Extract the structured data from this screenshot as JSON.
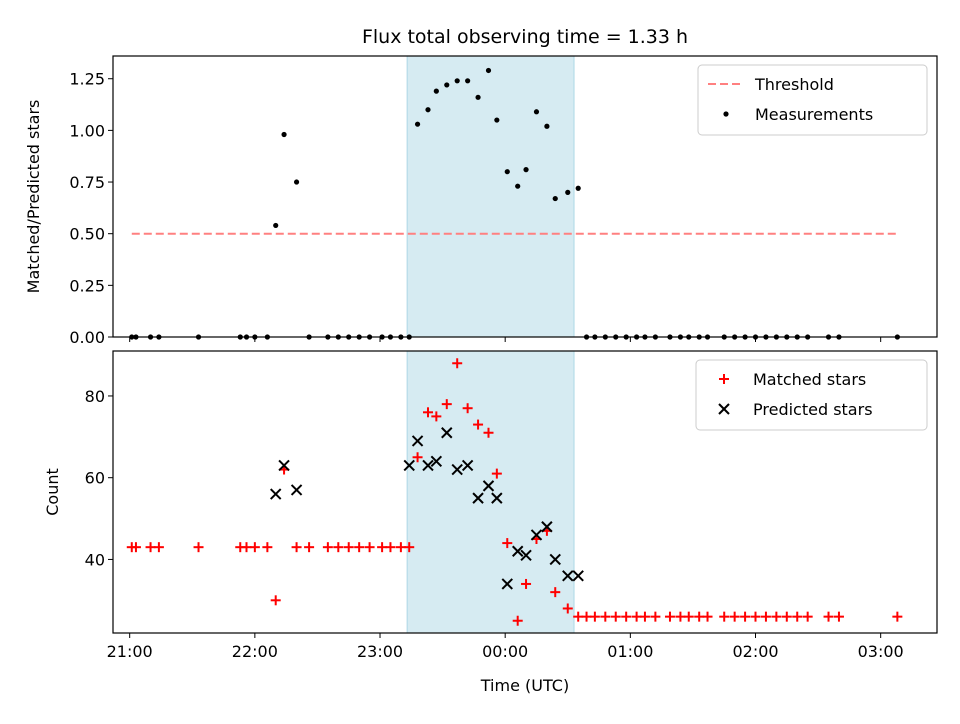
{
  "chart_data": [
    {
      "type": "scatter",
      "title": "Flux total observing time = 1.33 h",
      "xlabel": "",
      "ylabel": "Matched/Predicted stars",
      "ylim": [
        0,
        1.36
      ],
      "xlim": [
        "20:52",
        "03:27"
      ],
      "yticks": [
        "0.00",
        "0.25",
        "0.50",
        "0.75",
        "1.00",
        "1.25"
      ],
      "xticks": [
        "21:00",
        "22:00",
        "23:00",
        "00:00",
        "01:00",
        "02:00",
        "03:00"
      ],
      "x_tick_labels_visible": false,
      "grid": false,
      "legend": {
        "placement": "top-right",
        "entries": [
          "Threshold",
          "Measurements"
        ]
      },
      "shaded_region": {
        "x": [
          "23:13",
          "00:33"
        ],
        "color": "#add8e6"
      },
      "series": [
        {
          "name": "Threshold",
          "style": "dashed-line",
          "color": "#ff8080",
          "x": [
            "21:01",
            "03:08"
          ],
          "y": [
            0.5,
            0.5
          ]
        },
        {
          "name": "Measurements",
          "style": "dot",
          "color": "#000000",
          "x": [
            "21:01",
            "21:03",
            "21:10",
            "21:14",
            "21:33",
            "21:53",
            "21:56",
            "22:00",
            "22:06",
            "22:10",
            "22:14",
            "22:20",
            "22:26",
            "22:35",
            "22:40",
            "22:45",
            "22:50",
            "22:55",
            "23:01",
            "23:05",
            "23:10",
            "23:14",
            "23:18",
            "23:23",
            "23:27",
            "23:32",
            "23:37",
            "23:42",
            "23:47",
            "23:52",
            "23:56",
            "00:01",
            "00:06",
            "00:10",
            "00:15",
            "00:20",
            "00:24",
            "00:30",
            "00:35",
            "00:39",
            "00:43",
            "00:48",
            "00:53",
            "00:58",
            "01:03",
            "01:07",
            "01:12",
            "01:19",
            "01:24",
            "01:28",
            "01:33",
            "01:37",
            "01:45",
            "01:50",
            "01:55",
            "02:00",
            "02:05",
            "02:10",
            "02:15",
            "02:20",
            "02:25",
            "02:35",
            "02:40",
            "03:08"
          ],
          "y": [
            0,
            0,
            0,
            0,
            0,
            0,
            0,
            0,
            0,
            0.54,
            0.98,
            0.75,
            0,
            0,
            0,
            0,
            0,
            0,
            0,
            0,
            0,
            0,
            1.03,
            1.1,
            1.19,
            1.22,
            1.24,
            1.24,
            1.16,
            1.29,
            1.05,
            0.8,
            0.73,
            0.81,
            1.09,
            1.02,
            0.67,
            0.7,
            0.72,
            0,
            0,
            0,
            0,
            0,
            0,
            0,
            0,
            0,
            0,
            0,
            0,
            0,
            0,
            0,
            0,
            0,
            0,
            0,
            0,
            0,
            0,
            0,
            0,
            0
          ]
        }
      ]
    },
    {
      "type": "scatter",
      "title": "",
      "xlabel": "Time (UTC)",
      "ylabel": "Count",
      "ylim": [
        22,
        91
      ],
      "xlim": [
        "20:52",
        "03:27"
      ],
      "yticks": [
        "40",
        "60",
        "80"
      ],
      "xticks": [
        "21:00",
        "22:00",
        "23:00",
        "00:00",
        "01:00",
        "02:00",
        "03:00"
      ],
      "grid": false,
      "legend": {
        "placement": "top-right",
        "entries": [
          "Matched stars",
          "Predicted stars"
        ]
      },
      "shaded_region": {
        "x": [
          "23:13",
          "00:33"
        ],
        "color": "#add8e6"
      },
      "series": [
        {
          "name": "Matched stars",
          "style": "plus",
          "color": "#ff0000",
          "x": [
            "21:01",
            "21:03",
            "21:10",
            "21:14",
            "21:33",
            "21:53",
            "21:56",
            "22:00",
            "22:06",
            "22:10",
            "22:14",
            "22:20",
            "22:26",
            "22:35",
            "22:40",
            "22:45",
            "22:50",
            "22:55",
            "23:01",
            "23:05",
            "23:10",
            "23:14",
            "23:18",
            "23:23",
            "23:27",
            "23:32",
            "23:37",
            "23:42",
            "23:47",
            "23:52",
            "23:56",
            "00:01",
            "00:06",
            "00:10",
            "00:15",
            "00:20",
            "00:24",
            "00:30",
            "00:35",
            "00:39",
            "00:43",
            "00:48",
            "00:53",
            "00:58",
            "01:03",
            "01:07",
            "01:12",
            "01:19",
            "01:24",
            "01:28",
            "01:33",
            "01:37",
            "01:45",
            "01:50",
            "01:55",
            "02:00",
            "02:05",
            "02:10",
            "02:15",
            "02:20",
            "02:25",
            "02:35",
            "02:40",
            "03:08"
          ],
          "y": [
            43,
            43,
            43,
            43,
            43,
            43,
            43,
            43,
            43,
            30,
            62,
            43,
            43,
            43,
            43,
            43,
            43,
            43,
            43,
            43,
            43,
            43,
            65,
            76,
            75,
            78,
            88,
            77,
            73,
            71,
            61,
            44,
            25,
            34,
            45,
            47,
            32,
            28,
            26,
            26,
            26,
            26,
            26,
            26,
            26,
            26,
            26,
            26,
            26,
            26,
            26,
            26,
            26,
            26,
            26,
            26,
            26,
            26,
            26,
            26,
            26,
            26,
            26,
            26
          ]
        },
        {
          "name": "Predicted stars",
          "style": "x",
          "color": "#000000",
          "x": [
            "22:10",
            "22:14",
            "22:20",
            "23:14",
            "23:18",
            "23:23",
            "23:27",
            "23:32",
            "23:37",
            "23:42",
            "23:47",
            "23:52",
            "23:56",
            "00:01",
            "00:06",
            "00:10",
            "00:15",
            "00:20",
            "00:24",
            "00:30",
            "00:35"
          ],
          "y": [
            56,
            63,
            57,
            63,
            69,
            63,
            64,
            71,
            62,
            63,
            55,
            58,
            55,
            34,
            42,
            41,
            46,
            48,
            40,
            36,
            36
          ]
        }
      ]
    }
  ]
}
